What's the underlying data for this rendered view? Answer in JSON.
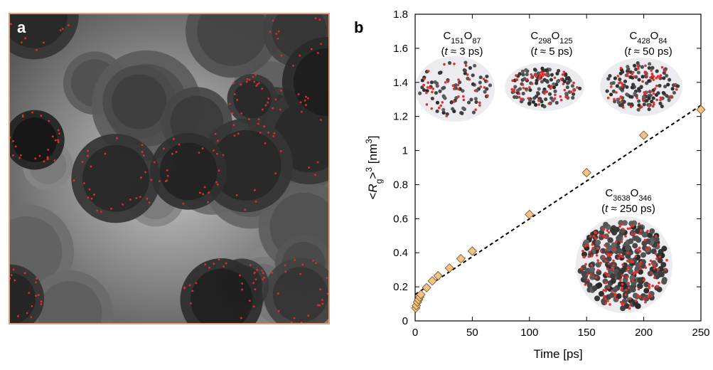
{
  "panel_a": {
    "label": "a",
    "border_color": "#d9a27c"
  },
  "panel_b": {
    "label": "b"
  },
  "chart_data": {
    "type": "scatter",
    "title": "",
    "xlabel": "Time [ps]",
    "ylabel": {
      "prefix": "<",
      "var": "R",
      "sub": "g",
      "close": ">",
      "sup": "3",
      "unit": " [nm",
      "unit_sup": "3",
      "unit_end": "]"
    },
    "xlim": [
      0,
      250
    ],
    "ylim": [
      0,
      1.8
    ],
    "xticks": [
      0,
      50,
      100,
      150,
      200,
      250
    ],
    "yticks": [
      0,
      0.2,
      0.4,
      0.6,
      0.8,
      1,
      1.2,
      1.4,
      1.6,
      1.8
    ],
    "ytick_labels": [
      "0",
      "0.2",
      "0.4",
      "0.6",
      "0.8",
      "1",
      "1.2",
      "1.4",
      "1.6",
      "1.8"
    ],
    "series": [
      {
        "name": "<Rg>^3",
        "marker": "diamond",
        "color": "#f5c184",
        "x": [
          0.5,
          1,
          2,
          3,
          4,
          5,
          10,
          15,
          20,
          30,
          40,
          50,
          100,
          150,
          200,
          250
        ],
        "y": [
          0.075,
          0.09,
          0.11,
          0.125,
          0.14,
          0.155,
          0.195,
          0.235,
          0.265,
          0.31,
          0.365,
          0.41,
          0.625,
          0.87,
          1.09,
          1.24
        ]
      }
    ],
    "fit_line": {
      "style": "dashed",
      "color": "#000000",
      "x": [
        0,
        250
      ],
      "y": [
        0.155,
        1.265
      ]
    },
    "annotations": [
      {
        "formula": [
          [
            "C",
            ""
          ],
          [
            "151",
            "sub"
          ],
          [
            "O",
            ""
          ],
          [
            "87",
            "sub"
          ]
        ],
        "time": "(t ≈ 3 ps)",
        "t_label": "t",
        "rest": " ≈ 3 ps)"
      },
      {
        "formula": [
          [
            "C",
            ""
          ],
          [
            "298",
            "sub"
          ],
          [
            "O",
            ""
          ],
          [
            "125",
            "sub"
          ]
        ],
        "time": "(t ≈ 5 ps)",
        "t_label": "t",
        "rest": " ≈ 5 ps)"
      },
      {
        "formula": [
          [
            "C",
            ""
          ],
          [
            "428",
            "sub"
          ],
          [
            "O",
            ""
          ],
          [
            "84",
            "sub"
          ]
        ],
        "time": "(t ≈ 50 ps)",
        "t_label": "t",
        "rest": " ≈ 50 ps)"
      },
      {
        "formula": [
          [
            "C",
            ""
          ],
          [
            "3638",
            "sub"
          ],
          [
            "O",
            ""
          ],
          [
            "346",
            "sub"
          ]
        ],
        "time": "(t ≈ 250 ps)",
        "t_label": "t",
        "rest": " ≈ 250 ps)"
      }
    ]
  }
}
